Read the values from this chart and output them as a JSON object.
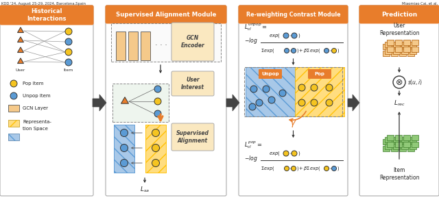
{
  "fig_width": 6.4,
  "fig_height": 2.92,
  "dpi": 100,
  "bg_color": "#ffffff",
  "orange": "#E87D2B",
  "light_orange": "#F5C98A",
  "yellow": "#F5C420",
  "blue": "#5B9BD5",
  "green": "#90C978",
  "light_yellow": "#FAE8C0",
  "header_text": "KDD '24, August 25-29, 2024, Barcelona,Spain",
  "author_text": "Miaomiao Cai, et al.",
  "sec1_title": "Historical\nInteractions",
  "sec2_title": "Supervised Alignment Module",
  "sec3_title": "Re-weighting Contrast Module",
  "sec4_title": "Prediction"
}
